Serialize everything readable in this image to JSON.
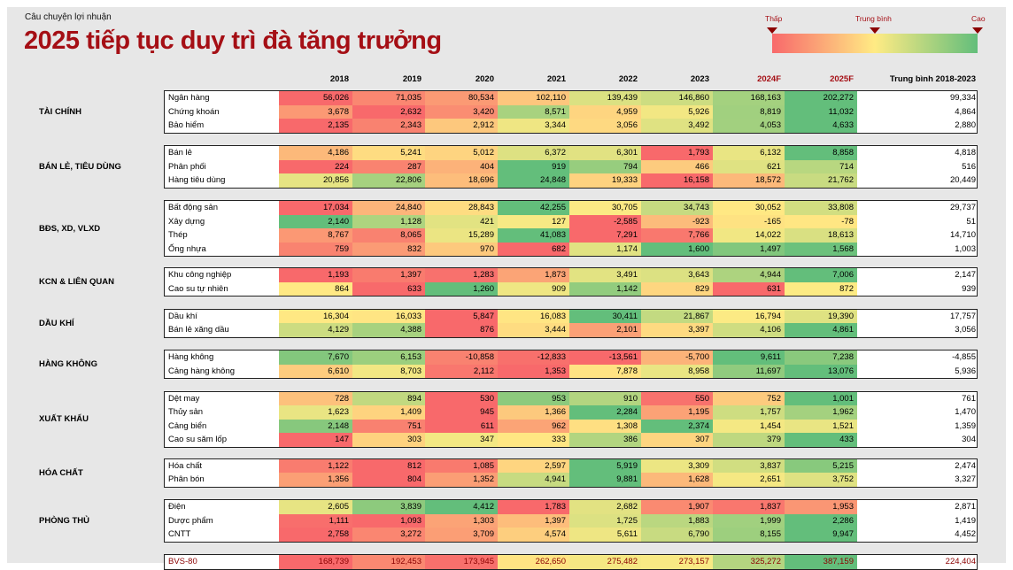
{
  "subtitle": "Câu chuyện lợi nhuận",
  "title": "2025 tiếp tục duy trì đà tăng trưởng",
  "legend": {
    "low": "Thấp",
    "mid": "Trung bình",
    "high": "Cao",
    "colors": {
      "low": "#f8696b",
      "mid": "#ffeb84",
      "high": "#63be7b"
    }
  },
  "chart_data": {
    "type": "heatmap",
    "columns": [
      "2018",
      "2019",
      "2020",
      "2021",
      "2022",
      "2023",
      "2024F",
      "2025F"
    ],
    "average_header": "Trung bình 2018-2023",
    "groups": [
      {
        "name": "TÀI CHÍNH",
        "rows": [
          {
            "label": "Ngân hàng",
            "values": [
              56026,
              71035,
              80534,
              102110,
              139439,
              146860,
              168163,
              202272
            ],
            "avg": 99334
          },
          {
            "label": "Chứng khoán",
            "values": [
              3678,
              2632,
              3420,
              8571,
              4959,
              5926,
              8819,
              11032
            ],
            "avg": 4864
          },
          {
            "label": "Bảo hiểm",
            "values": [
              2135,
              2343,
              2912,
              3344,
              3056,
              3492,
              4053,
              4633
            ],
            "avg": 2880
          }
        ]
      },
      {
        "name": "BÁN LẺ, TIÊU DÙNG",
        "rows": [
          {
            "label": "Bán lẻ",
            "values": [
              4186,
              5241,
              5012,
              6372,
              6301,
              1793,
              6132,
              8858
            ],
            "avg": 4818
          },
          {
            "label": "Phân phối",
            "values": [
              224,
              287,
              404,
              919,
              794,
              466,
              621,
              714
            ],
            "avg": 516
          },
          {
            "label": "Hàng tiêu dùng",
            "values": [
              20856,
              22806,
              18696,
              24848,
              19333,
              16158,
              18572,
              21762
            ],
            "avg": 20449
          }
        ]
      },
      {
        "name": "BĐS, XD, VLXD",
        "rows": [
          {
            "label": "Bất động sản",
            "values": [
              17034,
              24840,
              28843,
              42255,
              30705,
              34743,
              30052,
              33808
            ],
            "avg": 29737
          },
          {
            "label": "Xây dựng",
            "values": [
              2140,
              1128,
              421,
              127,
              -2585,
              -923,
              -165,
              -78
            ],
            "avg": 51
          },
          {
            "label": "Thép",
            "values": [
              8767,
              8065,
              15289,
              41083,
              7291,
              7766,
              14022,
              18613
            ],
            "avg": 14710
          },
          {
            "label": "Ống nhựa",
            "values": [
              759,
              832,
              970,
              682,
              1174,
              1600,
              1497,
              1568
            ],
            "avg": 1003
          }
        ]
      },
      {
        "name": "KCN & LIÊN QUAN",
        "rows": [
          {
            "label": "Khu công nghiệp",
            "values": [
              1193,
              1397,
              1283,
              1873,
              3491,
              3643,
              4944,
              7006
            ],
            "avg": 2147
          },
          {
            "label": "Cao su tự nhiên",
            "values": [
              864,
              633,
              1260,
              909,
              1142,
              829,
              631,
              872
            ],
            "avg": 939
          }
        ]
      },
      {
        "name": "DẦU KHÍ",
        "rows": [
          {
            "label": "Dầu khí",
            "values": [
              16304,
              16033,
              5847,
              16083,
              30411,
              21867,
              16794,
              19390
            ],
            "avg": 17757
          },
          {
            "label": "Bán lẻ xăng dầu",
            "values": [
              4129,
              4388,
              876,
              3444,
              2101,
              3397,
              4106,
              4861
            ],
            "avg": 3056
          }
        ]
      },
      {
        "name": "HÀNG KHÔNG",
        "rows": [
          {
            "label": "Hàng không",
            "values": [
              7670,
              6153,
              -10858,
              -12833,
              -13561,
              -5700,
              9611,
              7238
            ],
            "avg": -4855
          },
          {
            "label": "Cảng hàng không",
            "values": [
              6610,
              8703,
              2112,
              1353,
              7878,
              8958,
              11697,
              13076
            ],
            "avg": 5936
          }
        ]
      },
      {
        "name": "XUẤT KHẨU",
        "rows": [
          {
            "label": "Dệt may",
            "values": [
              728,
              894,
              530,
              953,
              910,
              550,
              752,
              1001
            ],
            "avg": 761
          },
          {
            "label": "Thủy sản",
            "values": [
              1623,
              1409,
              945,
              1366,
              2284,
              1195,
              1757,
              1962
            ],
            "avg": 1470
          },
          {
            "label": "Cảng biển",
            "values": [
              2148,
              751,
              611,
              962,
              1308,
              2374,
              1454,
              1521
            ],
            "avg": 1359
          },
          {
            "label": "Cao su săm lốp",
            "values": [
              147,
              303,
              347,
              333,
              386,
              307,
              379,
              433
            ],
            "avg": 304
          }
        ]
      },
      {
        "name": "HÓA CHẤT",
        "rows": [
          {
            "label": "Hóa chất",
            "values": [
              1122,
              812,
              1085,
              2597,
              5919,
              3309,
              3837,
              5215
            ],
            "avg": 2474
          },
          {
            "label": "Phân bón",
            "values": [
              1356,
              804,
              1352,
              4941,
              9881,
              1628,
              2651,
              3752
            ],
            "avg": 3327
          }
        ]
      },
      {
        "name": "PHÒNG THỦ",
        "rows": [
          {
            "label": "Điện",
            "values": [
              2605,
              3839,
              4412,
              1783,
              2682,
              1907,
              1837,
              1953
            ],
            "avg": 2871
          },
          {
            "label": "Dược phẩm",
            "values": [
              1111,
              1093,
              1303,
              1397,
              1725,
              1883,
              1999,
              2286
            ],
            "avg": 1419
          },
          {
            "label": "CNTT",
            "values": [
              2758,
              3272,
              3709,
              4574,
              5611,
              6790,
              8155,
              9947
            ],
            "avg": 4452
          }
        ]
      },
      {
        "name": "",
        "rows": [
          {
            "label": "BVS-80",
            "values": [
              168739,
              192453,
              173945,
              262650,
              275482,
              273157,
              325272,
              387159
            ],
            "avg": 224404
          }
        ]
      }
    ]
  }
}
